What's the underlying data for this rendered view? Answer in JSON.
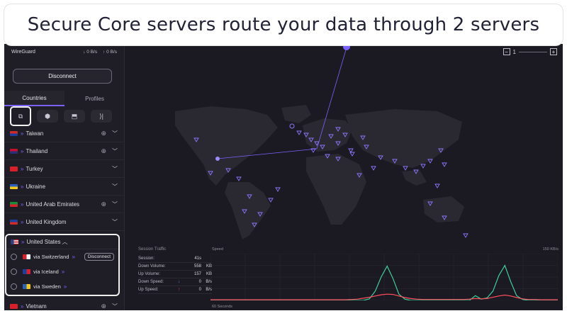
{
  "caption": "Secure Core servers route your data through 2 servers",
  "protocol": "WireGuard",
  "speed_down": "↓ 0 B/s",
  "speed_up": "↑ 0 B/s",
  "disconnect_label": "Disconnect",
  "tabs": [
    {
      "label": "Countries"
    },
    {
      "label": "Profiles"
    }
  ],
  "filters": [
    {
      "icon": "secure-core-icon",
      "glyph": "⧉"
    },
    {
      "icon": "p2p-icon",
      "glyph": "⬢"
    },
    {
      "icon": "tor-icon",
      "glyph": "⬒"
    },
    {
      "icon": "streaming-icon",
      "glyph": "⟩|"
    }
  ],
  "countries": [
    {
      "name": "Taiwan",
      "colors": [
        "#cf2a2a",
        "#1c3e9c"
      ],
      "globe": true
    },
    {
      "name": "Thailand",
      "colors": [
        "#c8102e",
        "#2b2f7a"
      ],
      "globe": true
    },
    {
      "name": "Turkey",
      "colors": [
        "#d8202a",
        "#d8202a"
      ],
      "globe": false
    },
    {
      "name": "Ukraine",
      "colors": [
        "#2d5fbd",
        "#f2c81a"
      ],
      "globe": false
    },
    {
      "name": "United Arab Emirates",
      "colors": [
        "#1a8a3a",
        "#d8202a"
      ],
      "globe": true
    },
    {
      "name": "United Kingdom",
      "colors": [
        "#1c3e9c",
        "#cf2a2a"
      ],
      "globe": false
    }
  ],
  "us": {
    "name": "United States",
    "routes": [
      {
        "label": "via Switzerland",
        "colors": [
          "#d8202a",
          "#ffffff"
        ],
        "action": "Disconnect"
      },
      {
        "label": "via Iceland",
        "colors": [
          "#1c3e9c",
          "#d8202a"
        ],
        "action": ""
      },
      {
        "label": "via Sweden",
        "colors": [
          "#2a63b5",
          "#f2c81a"
        ],
        "action": ""
      }
    ]
  },
  "vietnam": {
    "name": "Vietnam",
    "colors": [
      "#d8202a",
      "#f2c81a"
    ]
  },
  "zoom": {
    "minus": "−",
    "plus": "+",
    "value": "1"
  },
  "traffic": {
    "title": "Session Traffic",
    "speed_label": "Speed",
    "max_label": "150 KB/s",
    "time_label": "60 Seconds",
    "stats": [
      {
        "label": "Session:",
        "value": "41s",
        "unit": "",
        "arrow": ""
      },
      {
        "label": "Down Volume:",
        "value": "558",
        "unit": "KB",
        "arrow": ""
      },
      {
        "label": "Up Volume:",
        "value": "157",
        "unit": "KB",
        "arrow": ""
      },
      {
        "label": "Down Speed:",
        "value": "0",
        "unit": "B/s",
        "arrow": "↓"
      },
      {
        "label": "Up Speed:",
        "value": "0",
        "unit": "B/s",
        "arrow": "↑"
      }
    ]
  },
  "chart_data": {
    "type": "line",
    "ylim": [
      0,
      150
    ],
    "series": [
      {
        "values": [
          0,
          0,
          0,
          0,
          0,
          0,
          0,
          0,
          0,
          0,
          0,
          0,
          0,
          0,
          0,
          0,
          0,
          0,
          0,
          0,
          0,
          0,
          0,
          0,
          0,
          0,
          0,
          5,
          30,
          75,
          110,
          70,
          20,
          4,
          0,
          0,
          0,
          0,
          0,
          0,
          0,
          0,
          0,
          0,
          0,
          15,
          4,
          8,
          30,
          80,
          112,
          60,
          15,
          3,
          0,
          0,
          0,
          0,
          0,
          0
        ],
        "color": "#3fcf9c"
      },
      {
        "values": [
          2,
          2,
          2,
          2,
          2,
          2,
          2,
          2,
          2,
          2,
          2,
          2,
          2,
          2,
          2,
          2,
          2,
          2,
          2,
          2,
          2,
          2,
          2,
          2,
          3,
          4,
          7,
          10,
          14,
          18,
          20,
          19,
          14,
          9,
          6,
          4,
          3,
          3,
          3,
          3,
          3,
          3,
          3,
          3,
          4,
          6,
          5,
          6,
          10,
          14,
          17,
          14,
          9,
          5,
          3,
          3,
          2,
          2,
          2,
          2
        ],
        "color": "#ff4f5e"
      }
    ]
  },
  "colors": {
    "accent": "#7b61ff",
    "background": "#1b1a22"
  }
}
